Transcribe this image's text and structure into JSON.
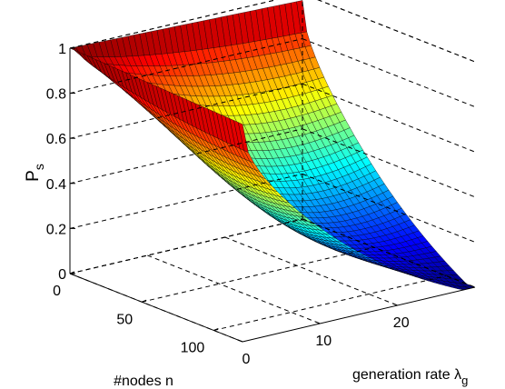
{
  "chart_data": {
    "type": "surface",
    "title": "",
    "x_axis": {
      "label": "#nodes n",
      "range": [
        0,
        120
      ],
      "ticks": [
        0,
        50,
        100
      ],
      "tick_labels": [
        "0",
        "50",
        "100"
      ]
    },
    "y_axis": {
      "label_main": "generation rate λ",
      "label_sub": "g",
      "range": [
        0,
        30
      ],
      "ticks": [
        0,
        10,
        20
      ],
      "tick_labels": [
        "0",
        "10",
        "20"
      ]
    },
    "z_axis": {
      "label_main": "P",
      "label_sub": "s",
      "range": [
        0,
        1
      ],
      "ticks": [
        0,
        0.2,
        0.4,
        0.6,
        0.8,
        1
      ],
      "tick_labels": [
        "0",
        "0.2",
        "0.4",
        "0.6",
        "0.8",
        "1"
      ]
    },
    "surface_samples": {
      "x_nodes": [
        0,
        120,
        0,
        120
      ],
      "y_rate": [
        0,
        0,
        30,
        30
      ],
      "P_s": [
        1.0,
        0.93,
        0.94,
        0.0
      ]
    },
    "colormap": "jet",
    "grid": true
  }
}
